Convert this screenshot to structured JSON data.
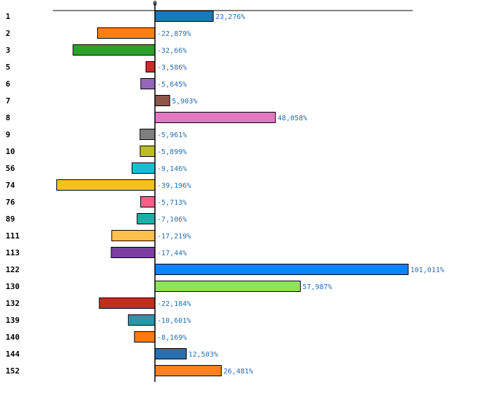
{
  "chart_data": {
    "type": "bar",
    "orientation": "horizontal",
    "title": "",
    "xlabel": "",
    "ylabel": "",
    "x_ticks": [
      "0"
    ],
    "xlim": [
      -49.3,
      101.011
    ],
    "grid": false,
    "categories": [
      "1",
      "2",
      "3",
      "5",
      "6",
      "7",
      "8",
      "9",
      "10",
      "56",
      "74",
      "76",
      "89",
      "111",
      "113",
      "122",
      "130",
      "132",
      "139",
      "140",
      "144",
      "152"
    ],
    "values": [
      23.276,
      -22.879,
      -32.66,
      -3.586,
      -5.645,
      5.903,
      48.058,
      -5.961,
      -5.899,
      -9.146,
      -39.196,
      -5.713,
      -7.106,
      -17.219,
      -17.44,
      101.011,
      57.987,
      -22.184,
      -10.601,
      -8.169,
      12.503,
      26.481
    ],
    "value_labels": [
      "23,276%",
      "-22,879%",
      "-32,66%",
      "-3,586%",
      "-5,645%",
      "5,903%",
      "48,058%",
      "-5,961%",
      "-5,899%",
      "-9,146%",
      "-39,196%",
      "-5,713%",
      "-7,106%",
      "-17,219%",
      "-17,44%",
      "101,011%",
      "57,987%",
      "-22,184%",
      "-10,601%",
      "-8,169%",
      "12,503%",
      "26,481%"
    ],
    "colors": [
      "#1f77b4",
      "#ff7f0e",
      "#2ca02c",
      "#d62728",
      "#9467bd",
      "#8c564b",
      "#e377c2",
      "#7f7f7f",
      "#bcbd22",
      "#17becf",
      "#f0c419",
      "#ff5c8a",
      "#1ab0a8",
      "#ffc04c",
      "#7b3f9e",
      "#0a84ff",
      "#8fe35a",
      "#c0301f",
      "#2e94a8",
      "#ff7a10",
      "#2870b0",
      "#ff8020"
    ]
  }
}
